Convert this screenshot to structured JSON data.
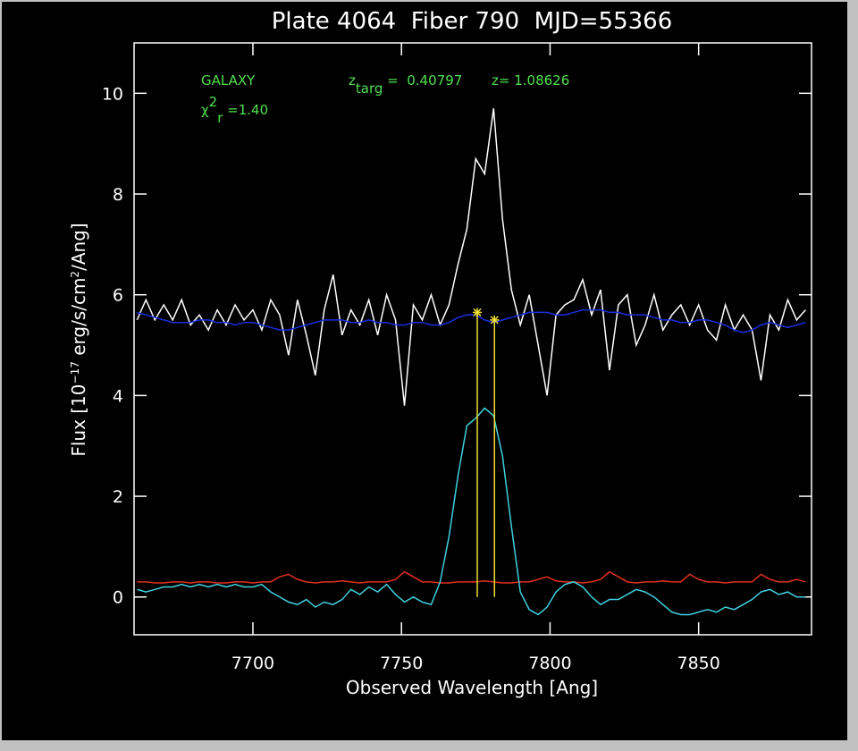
{
  "chart_data": {
    "type": "line",
    "title": "Plate 4064  Fiber 790  MJD=55366",
    "xlabel": "Observed Wavelength [Ang]",
    "ylabel": [
      {
        "text": "Flux [10"
      },
      {
        "sup": "−17"
      },
      {
        "text": " erg/s/cm"
      },
      {
        "sup": "2"
      },
      {
        "text": "/Ang]"
      }
    ],
    "annotations": [
      [
        {
          "text": "GALAXY"
        }
      ],
      [
        {
          "text": "χ"
        },
        {
          "sup": "2"
        },
        {
          "sub": "r"
        },
        {
          "text": " =1.40"
        }
      ],
      [
        {
          "text": "z"
        },
        {
          "sub": "targ"
        },
        {
          "text": " =  0.40797"
        }
      ],
      [
        {
          "text": "z= 1.08626"
        }
      ]
    ],
    "annotation_color": "#50e050",
    "xlim": [
      7660,
      7888
    ],
    "ylim": [
      -0.75,
      11
    ],
    "xticks": [
      7700,
      7750,
      7800,
      7850
    ],
    "yticks": [
      0,
      2,
      4,
      6,
      8,
      10
    ],
    "x": [
      7661,
      7664,
      7667,
      7670,
      7673,
      7676,
      7679,
      7682,
      7685,
      7688,
      7691,
      7694,
      7697,
      7700,
      7703,
      7706,
      7709,
      7712,
      7715,
      7718,
      7721,
      7724,
      7727,
      7730,
      7733,
      7736,
      7739,
      7742,
      7745,
      7748,
      7751,
      7754,
      7757,
      7760,
      7763,
      7766,
      7769,
      7772,
      7775,
      7778,
      7781,
      7784,
      7787,
      7790,
      7793,
      7796,
      7799,
      7802,
      7805,
      7808,
      7811,
      7814,
      7817,
      7820,
      7823,
      7826,
      7829,
      7832,
      7835,
      7838,
      7841,
      7844,
      7847,
      7850,
      7853,
      7856,
      7859,
      7862,
      7865,
      7868,
      7871,
      7874,
      7877,
      7880,
      7883,
      7886
    ],
    "series": [
      {
        "color": "#ffffff",
        "values": [
          5.5,
          5.9,
          5.5,
          5.8,
          5.5,
          5.9,
          5.4,
          5.6,
          5.3,
          5.7,
          5.4,
          5.8,
          5.5,
          5.7,
          5.3,
          5.9,
          5.6,
          4.8,
          5.9,
          5.2,
          4.4,
          5.7,
          6.4,
          5.2,
          5.7,
          5.4,
          5.9,
          5.2,
          6.0,
          5.5,
          3.8,
          5.8,
          5.5,
          6.0,
          5.4,
          5.8,
          6.6,
          7.3,
          8.7,
          8.4,
          9.7,
          7.5,
          6.1,
          5.4,
          6.0,
          5.0,
          4.0,
          5.6,
          5.8,
          5.9,
          6.3,
          5.6,
          6.1,
          4.5,
          5.8,
          6.0,
          5.0,
          5.4,
          6.0,
          5.3,
          5.6,
          5.8,
          5.4,
          5.8,
          5.3,
          5.1,
          5.8,
          5.3,
          5.6,
          5.3,
          4.3,
          5.6,
          5.3,
          5.9,
          5.5,
          5.7
        ]
      },
      {
        "color": "#1a2fe0",
        "values": [
          5.65,
          5.6,
          5.55,
          5.5,
          5.45,
          5.45,
          5.45,
          5.5,
          5.5,
          5.45,
          5.45,
          5.4,
          5.45,
          5.45,
          5.4,
          5.35,
          5.3,
          5.3,
          5.35,
          5.4,
          5.45,
          5.5,
          5.5,
          5.5,
          5.45,
          5.45,
          5.5,
          5.45,
          5.45,
          5.4,
          5.4,
          5.45,
          5.45,
          5.4,
          5.4,
          5.45,
          5.55,
          5.6,
          5.6,
          5.5,
          5.45,
          5.5,
          5.55,
          5.6,
          5.65,
          5.65,
          5.65,
          5.6,
          5.6,
          5.65,
          5.7,
          5.7,
          5.7,
          5.65,
          5.65,
          5.6,
          5.6,
          5.6,
          5.55,
          5.5,
          5.5,
          5.45,
          5.45,
          5.5,
          5.5,
          5.45,
          5.4,
          5.3,
          5.25,
          5.3,
          5.4,
          5.45,
          5.4,
          5.35,
          5.4,
          5.45
        ]
      },
      {
        "color": "#e03020",
        "values": [
          0.3,
          0.3,
          0.28,
          0.28,
          0.3,
          0.3,
          0.28,
          0.3,
          0.3,
          0.28,
          0.28,
          0.3,
          0.3,
          0.28,
          0.3,
          0.3,
          0.4,
          0.45,
          0.35,
          0.3,
          0.28,
          0.3,
          0.3,
          0.32,
          0.3,
          0.28,
          0.3,
          0.3,
          0.3,
          0.35,
          0.5,
          0.4,
          0.3,
          0.3,
          0.28,
          0.28,
          0.3,
          0.3,
          0.3,
          0.32,
          0.3,
          0.28,
          0.28,
          0.3,
          0.3,
          0.35,
          0.4,
          0.32,
          0.3,
          0.3,
          0.28,
          0.3,
          0.35,
          0.5,
          0.4,
          0.3,
          0.28,
          0.3,
          0.3,
          0.32,
          0.3,
          0.3,
          0.45,
          0.35,
          0.3,
          0.3,
          0.28,
          0.3,
          0.3,
          0.3,
          0.45,
          0.35,
          0.3,
          0.3,
          0.35,
          0.3
        ]
      },
      {
        "color": "#40d0e0",
        "values": [
          0.15,
          0.1,
          0.15,
          0.2,
          0.2,
          0.25,
          0.2,
          0.25,
          0.2,
          0.25,
          0.2,
          0.25,
          0.2,
          0.2,
          0.25,
          0.1,
          0.0,
          -0.1,
          -0.15,
          -0.05,
          -0.2,
          -0.1,
          -0.15,
          -0.05,
          0.15,
          0.05,
          0.2,
          0.1,
          0.25,
          0.05,
          -0.1,
          0.0,
          -0.1,
          -0.15,
          0.3,
          1.2,
          2.4,
          3.4,
          3.55,
          3.75,
          3.6,
          2.8,
          1.4,
          0.1,
          -0.25,
          -0.35,
          -0.2,
          0.1,
          0.25,
          0.3,
          0.2,
          0.0,
          -0.15,
          -0.05,
          -0.05,
          0.05,
          0.15,
          0.1,
          0.0,
          -0.15,
          -0.3,
          -0.35,
          -0.35,
          -0.3,
          -0.25,
          -0.3,
          -0.2,
          -0.25,
          -0.15,
          -0.05,
          0.1,
          0.15,
          0.05,
          0.1,
          0.0,
          0.0
        ]
      }
    ],
    "markers": {
      "color": "#f0e030",
      "x": [
        7775.5,
        7781.3
      ],
      "y": [
        5.65,
        5.5
      ]
    },
    "axis_color": "#ffffff"
  }
}
